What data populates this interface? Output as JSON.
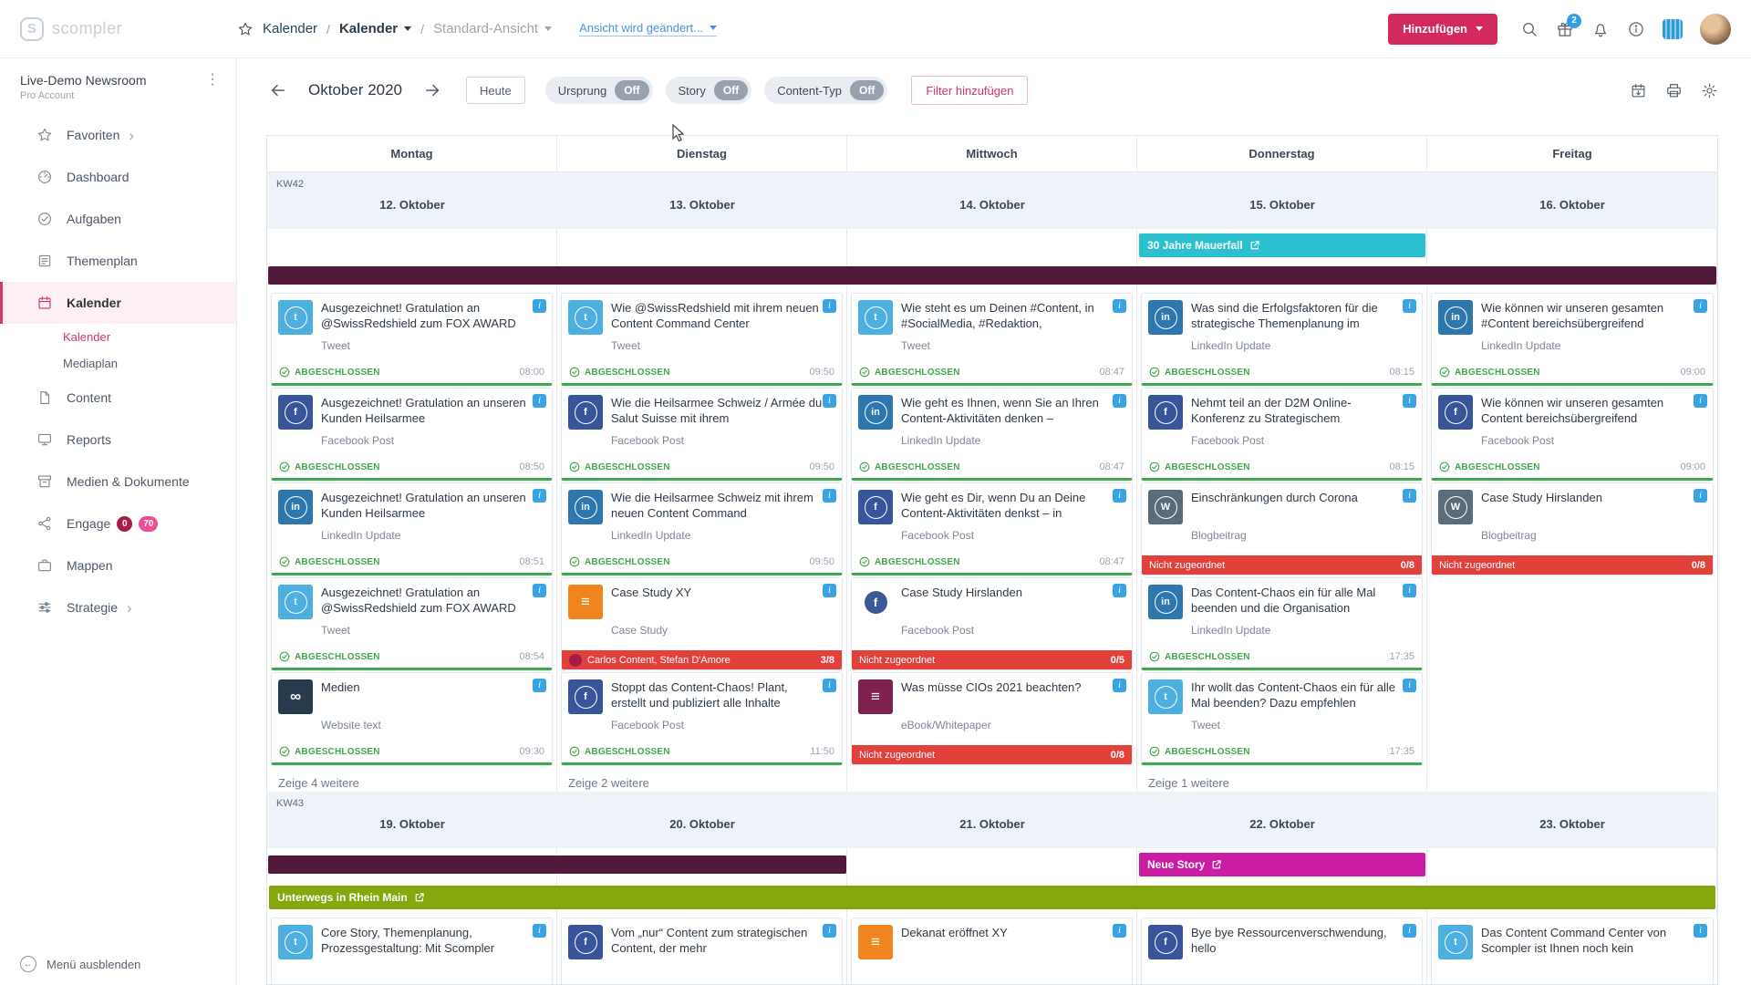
{
  "header": {
    "logo": "scompler",
    "breadcrumb_root": "Kalender",
    "breadcrumb_section": "Kalender",
    "breadcrumb_view": "Standard-Ansicht",
    "view_link": "Ansicht wird geändert...",
    "add_button": "Hinzufügen",
    "gift_badge": "2"
  },
  "sidebar": {
    "workspace_name": "Live-Demo Newsroom",
    "workspace_plan": "Pro Account",
    "items": [
      {
        "id": "favoriten",
        "icon": "star",
        "label": "Favoriten",
        "chevron": true
      },
      {
        "id": "dashboard",
        "icon": "dashboard",
        "label": "Dashboard"
      },
      {
        "id": "aufgaben",
        "icon": "tasks",
        "label": "Aufgaben"
      },
      {
        "id": "themenplan",
        "icon": "themenplan",
        "label": "Themenplan"
      },
      {
        "id": "kalender",
        "icon": "calendar",
        "label": "Kalender",
        "active": true,
        "children": [
          {
            "id": "kalender",
            "label": "Kalender",
            "active": true
          },
          {
            "id": "mediaplan",
            "label": "Mediaplan"
          }
        ]
      },
      {
        "id": "content",
        "icon": "content",
        "label": "Content"
      },
      {
        "id": "reports",
        "icon": "reports",
        "label": "Reports"
      },
      {
        "id": "medien-dokumente",
        "icon": "media",
        "label": "Medien & Dokumente"
      },
      {
        "id": "engage",
        "icon": "engage",
        "label": "Engage",
        "badges": [
          {
            "text": "0",
            "bg": "#a81e46"
          },
          {
            "text": "70",
            "bg": "#ee4d94"
          }
        ]
      },
      {
        "id": "mappen",
        "icon": "mappen",
        "label": "Mappen"
      },
      {
        "id": "strategie",
        "icon": "strategie",
        "label": "Strategie",
        "chevron": true
      }
    ],
    "footer": "Menü ausblenden"
  },
  "toolbar": {
    "month": "Oktober 2020",
    "today": "Heute",
    "filters": [
      {
        "id": "ursprung",
        "label": "Ursprung",
        "state": "Off"
      },
      {
        "id": "story",
        "label": "Story",
        "state": "Off"
      },
      {
        "id": "content-typ",
        "label": "Content-Typ",
        "state": "Off"
      }
    ],
    "add_filter": "Filter hinzufügen"
  },
  "labels": {
    "completed": "ABGESCHLOSSEN",
    "unassigned": "Nicht zugeordnet"
  },
  "colors": {
    "brand": "#d4295f",
    "done": "#3fa74e",
    "unassigned": "#e2403b",
    "info_badge": "#3aa3e3",
    "story_bar": "#511a3b",
    "banner_teal": "#2bc0cf",
    "banner_magenta": "#cb1ca4",
    "banner_green": "#84a80d"
  },
  "icon_styles": {
    "twitter": {
      "bg": "#4daee0",
      "glyph": "t"
    },
    "facebook": {
      "bg": "#38549b",
      "glyph": "f"
    },
    "linkedin": {
      "bg": "#2d76ae",
      "glyph": "in"
    },
    "wordpress": {
      "bg": "#5a6b79",
      "glyph": "W"
    },
    "website": {
      "bg": "#283b4e",
      "glyph": "∞",
      "noring": true
    },
    "casestudy": {
      "bg": "#f0841f",
      "glyph": "≡",
      "noring": true
    },
    "ebook": {
      "bg": "#7e2050",
      "glyph": "≡",
      "noring": true
    },
    "facebook_round": {
      "bg": "#ffffff",
      "glyph": "f",
      "circle": "#3b5998"
    }
  },
  "calendar": {
    "day_headers": [
      "Montag",
      "Dienstag",
      "Mittwoch",
      "Donnerstag",
      "Freitag"
    ],
    "weeks": [
      {
        "kw": "KW42",
        "dates": [
          "12. Oktober",
          "13. Oktober",
          "14. Oktober",
          "15. Oktober",
          "16. Oktober"
        ],
        "banner_rows": [
          [
            {
              "col": 4,
              "span": 1,
              "label": "30 Jahre Mauerfall",
              "color": "#2bc0cf",
              "link": true
            }
          ],
          [
            {
              "col": 1,
              "span": 5,
              "color": "#511a3b"
            }
          ]
        ],
        "columns": [
          {
            "more": "Zeige 4 weitere",
            "cards": [
              {
                "icon": "twitter",
                "title": "Ausgezeichnet! Gratulation an @SwissRedshield zum FOX AWARD",
                "type": "Tweet",
                "status": "done",
                "time": "08:00"
              },
              {
                "icon": "facebook",
                "title": "Ausgezeichnet! Gratulation an unseren Kunden Heilsarmee",
                "type": "Facebook Post",
                "status": "done",
                "time": "08:50"
              },
              {
                "icon": "linkedin",
                "title": "Ausgezeichnet! Gratulation an unseren Kunden Heilsarmee",
                "type": "LinkedIn Update",
                "status": "done",
                "time": "08:51"
              },
              {
                "icon": "twitter",
                "title": "Ausgezeichnet! Gratulation an @SwissRedshield zum FOX AWARD",
                "type": "Tweet",
                "status": "done",
                "time": "08:54"
              },
              {
                "icon": "website",
                "title": "Medien",
                "type": "Website text",
                "status": "done",
                "time": "09:30"
              }
            ]
          },
          {
            "more": "Zeige 2 weitere",
            "cards": [
              {
                "icon": "twitter",
                "title": "Wie @SwissRedshield mit ihrem neuen Content Command Center",
                "type": "Tweet",
                "status": "done",
                "time": "09:50"
              },
              {
                "icon": "facebook",
                "title": "Wie die Heilsarmee Schweiz / Armée du Salut Suisse mit ihrem",
                "type": "Facebook Post",
                "status": "done",
                "time": "09:50"
              },
              {
                "icon": "linkedin",
                "title": "Wie die Heilsarmee Schweiz mit ihrem neuen Content Command",
                "type": "LinkedIn Update",
                "status": "done",
                "time": "09:50"
              },
              {
                "icon": "casestudy",
                "title": "Case Study XY",
                "type": "Case Study",
                "status": "team",
                "team": "Carlos Content, Stefan D'Amore",
                "count": "3/8"
              },
              {
                "icon": "facebook",
                "title": "Stoppt das Content-Chaos! Plant, erstellt und publiziert alle Inhalte",
                "type": "Facebook Post",
                "status": "done",
                "time": "11:50"
              }
            ]
          },
          {
            "cards": [
              {
                "icon": "twitter",
                "title": "Wie steht es um Deinen #Content, in #SocialMedia, #Redaktion,",
                "type": "Tweet",
                "status": "done",
                "time": "08:47"
              },
              {
                "icon": "linkedin",
                "title": "Wie geht es Ihnen, wenn Sie an Ihren Content-Aktivitäten denken –",
                "type": "LinkedIn Update",
                "status": "done",
                "time": "08:47"
              },
              {
                "icon": "facebook",
                "title": "Wie geht es Dir, wenn Du an Deine Content-Aktivitäten denkst – in",
                "type": "Facebook Post",
                "status": "done",
                "time": "08:47"
              },
              {
                "icon": "facebook_round",
                "title": "Case Study Hirslanden",
                "type": "Facebook Post",
                "status": "unassigned",
                "count": "0/5"
              },
              {
                "icon": "ebook",
                "title": "Was müsse CIOs 2021 beachten?",
                "type": "eBook/Whitepaper",
                "status": "unassigned",
                "count": "0/8"
              }
            ]
          },
          {
            "more": "Zeige 1 weitere",
            "cards": [
              {
                "icon": "linkedin",
                "title": "Was sind die Erfolgsfaktoren für die strategische Themenplanung im",
                "type": "LinkedIn Update",
                "status": "done",
                "time": "08:15"
              },
              {
                "icon": "facebook",
                "title": "Nehmt teil an der D2M Online-Konferenz zu Strategischem",
                "type": "Facebook Post",
                "status": "done",
                "time": "08:15"
              },
              {
                "icon": "wordpress",
                "title": "Einschränkungen durch Corona",
                "type": "Blogbeitrag",
                "status": "unassigned",
                "count": "0/8"
              },
              {
                "icon": "linkedin",
                "title": "Das Content-Chaos ein für alle Mal beenden und die Organisation",
                "type": "LinkedIn Update",
                "status": "done",
                "time": "17:35"
              },
              {
                "icon": "twitter",
                "title": "Ihr wollt das Content-Chaos ein für alle Mal beenden? Dazu empfehlen",
                "type": "Tweet",
                "status": "done",
                "time": "17:35"
              }
            ]
          },
          {
            "cards": [
              {
                "icon": "linkedin",
                "title": "Wie können wir unseren gesamten #Content bereichsübergreifend",
                "type": "LinkedIn Update",
                "status": "done",
                "time": "09:00"
              },
              {
                "icon": "facebook",
                "title": "Wie können wir unseren gesamten Content bereichsübergreifend",
                "type": "Facebook Post",
                "status": "done",
                "time": "09:00"
              },
              {
                "icon": "wordpress",
                "title": "Case Study Hirslanden",
                "type": "Blogbeitrag",
                "status": "unassigned",
                "count": "0/8"
              }
            ]
          }
        ]
      },
      {
        "kw": "KW43",
        "dates": [
          "19. Oktober",
          "20. Oktober",
          "21. Oktober",
          "22. Oktober",
          "23. Oktober"
        ],
        "banner_rows": [
          [
            {
              "col": 1,
              "span": 2,
              "color": "#511a3b"
            },
            {
              "col": 4,
              "span": 1,
              "label": "Neue Story",
              "color": "#cb1ca4",
              "link": true
            }
          ],
          [
            {
              "col": 1,
              "span": 5,
              "label": "Unterwegs in Rhein Main",
              "color": "#84a80d",
              "link": true
            }
          ]
        ],
        "columns": [
          {
            "cards": [
              {
                "icon": "twitter",
                "title": "Core Story, Themenplanung, Prozessgestaltung: Mit Scompler"
              }
            ]
          },
          {
            "cards": [
              {
                "icon": "facebook",
                "title": "Vom „nur“ Content zum strategischen Content, der mehr"
              }
            ]
          },
          {
            "cards": [
              {
                "icon": "casestudy",
                "title": "Dekanat eröffnet XY"
              }
            ]
          },
          {
            "cards": [
              {
                "icon": "facebook",
                "title": "Bye bye Ressourcenverschwendung, hello"
              }
            ]
          },
          {
            "cards": [
              {
                "icon": "twitter",
                "title": "Das Content Command Center von Scompler ist Ihnen noch kein"
              }
            ]
          }
        ]
      }
    ]
  }
}
